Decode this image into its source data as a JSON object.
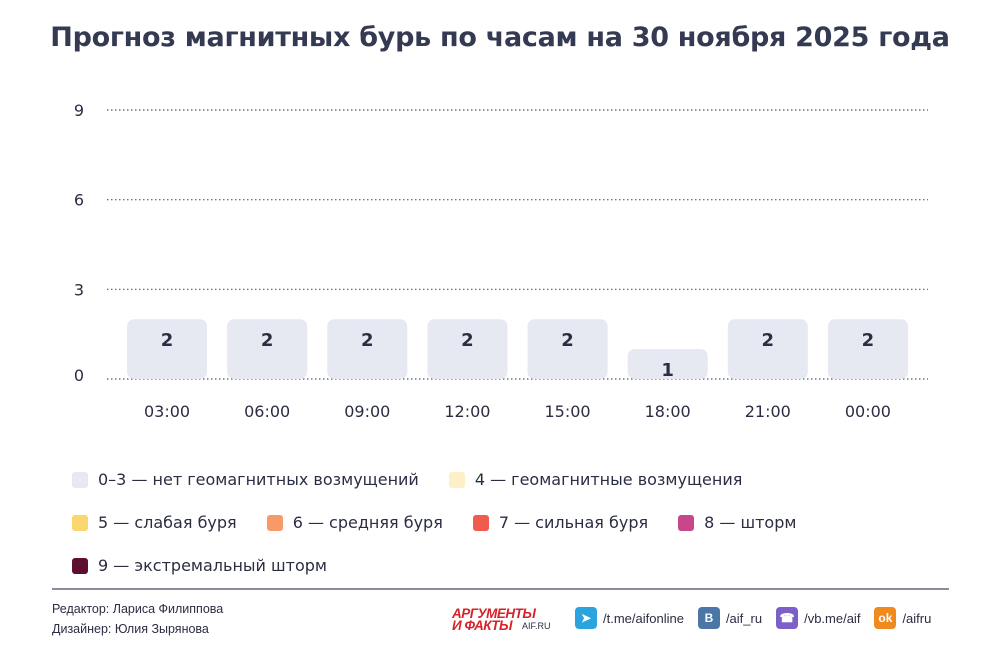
{
  "chart_data": {
    "type": "bar",
    "title": "Прогноз магнитных бурь по часам на 30 ноября 2025 года",
    "categories": [
      "03:00",
      "06:00",
      "09:00",
      "12:00",
      "15:00",
      "18:00",
      "21:00",
      "00:00"
    ],
    "values": [
      2,
      2,
      2,
      2,
      2,
      1,
      2,
      2
    ],
    "yticks": [
      0,
      3,
      6,
      9
    ],
    "ylim": [
      0,
      9
    ],
    "grid": "dotted horizontal",
    "bar_color": "#e6e8f2",
    "legend_placement": "bottom",
    "legend": [
      {
        "label": "0–3 — нет геомагнитных возмущений",
        "color": "#e6e8f2"
      },
      {
        "label": "4 — геомагнитные возмущения",
        "color": "#fdf0c6"
      },
      {
        "label": "5 — слабая буря",
        "color": "#f9d66e"
      },
      {
        "label": "6 — средняя буря",
        "color": "#f79a68"
      },
      {
        "label": "7 — сильная буря",
        "color": "#ef5c4f"
      },
      {
        "label": "8 — шторм",
        "color": "#c8478a"
      },
      {
        "label": "9 — экстремальный шторм",
        "color": "#5e0f2f"
      }
    ]
  },
  "footer": {
    "editor": "Редактор: Лариса Филиппова",
    "designer": "Дизайнер: Юлия Зырянова",
    "brand_top": "АРГУМЕНТЫ",
    "brand_bottom": "И ФАКТЫ",
    "brand_site": "AIF.RU",
    "socials": [
      {
        "icon": "telegram-icon",
        "label": "/t.me/aifonline",
        "color": "#2aa3df",
        "glyph": "➤"
      },
      {
        "icon": "vk-icon",
        "label": "/aif_ru",
        "color": "#4a76a8",
        "glyph": "B"
      },
      {
        "icon": "viber-icon",
        "label": "/vb.me/aif",
        "color": "#7c5fc9",
        "glyph": "☎"
      },
      {
        "icon": "odnoklassniki-icon",
        "label": "/aifru",
        "color": "#f08a1c",
        "glyph": "ok"
      }
    ]
  }
}
